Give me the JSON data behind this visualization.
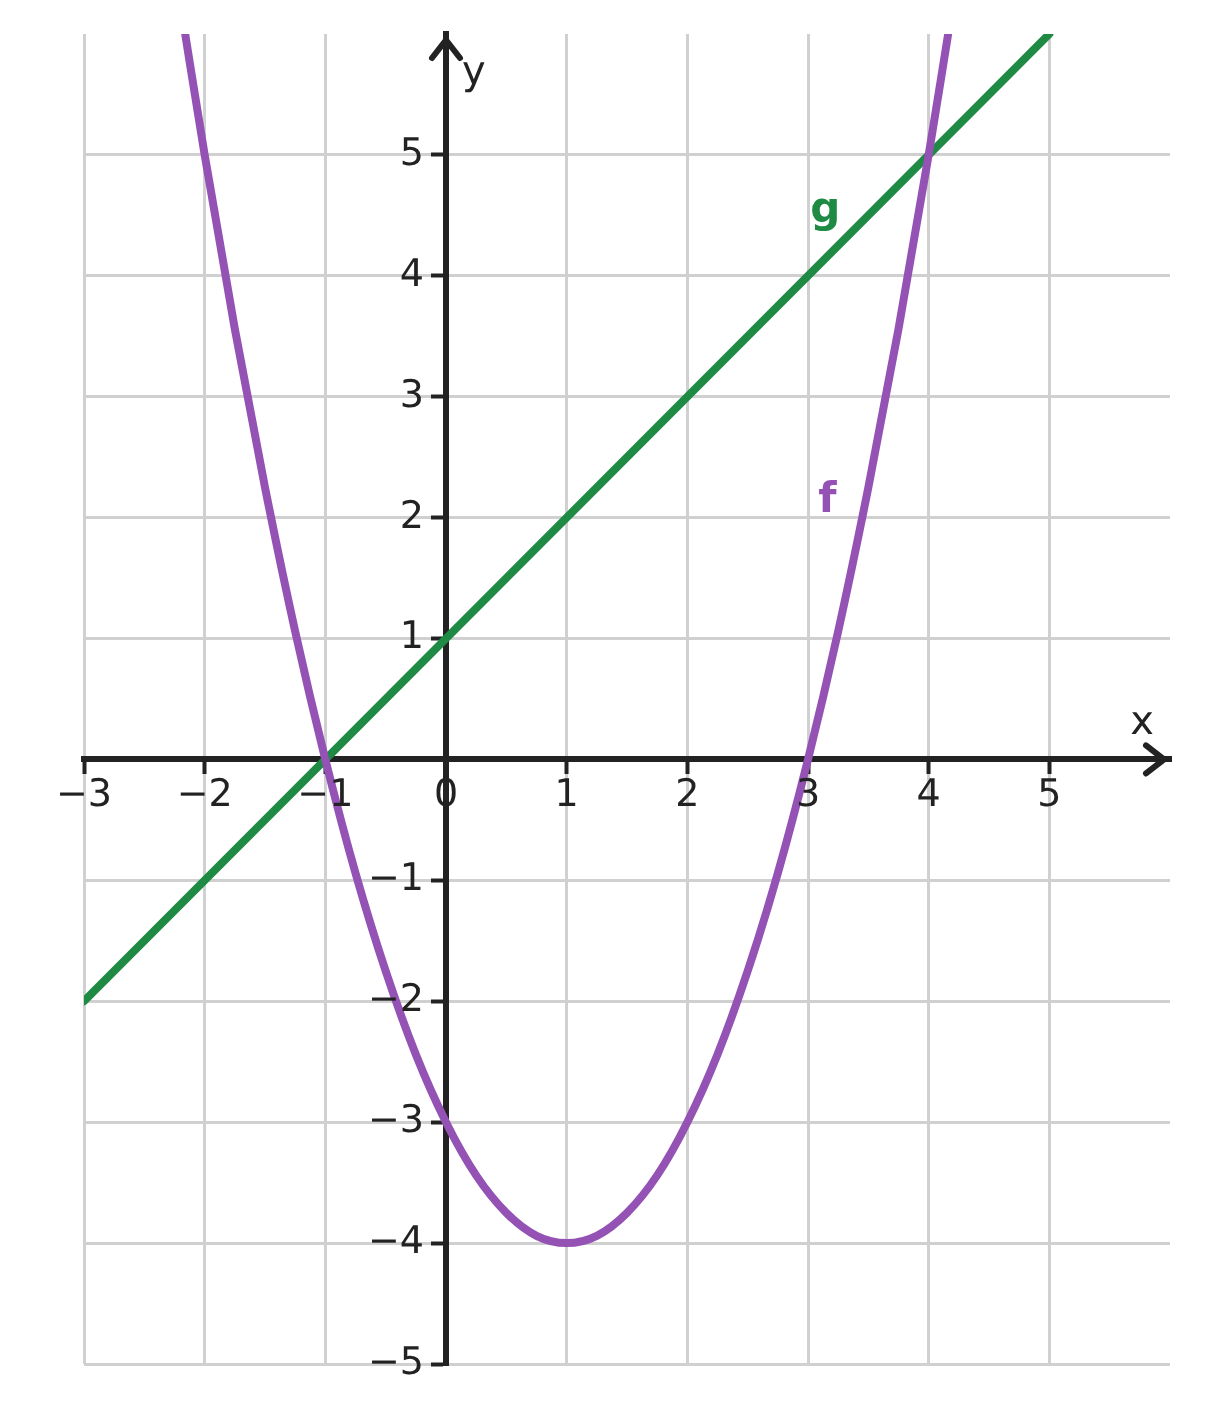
{
  "chart_data": {
    "type": "line",
    "xlabel": "x",
    "ylabel": "y",
    "xlim": [
      -3,
      6
    ],
    "ylim": [
      -5,
      6
    ],
    "xticks": [
      {
        "value": -3,
        "label": "−3"
      },
      {
        "value": -2,
        "label": "−2"
      },
      {
        "value": -1,
        "label": "−1"
      },
      0,
      1,
      2,
      3,
      4,
      5
    ],
    "yticks": [
      {
        "value": -5,
        "label": "−5"
      },
      {
        "value": -4,
        "label": "−4"
      },
      {
        "value": -3,
        "label": "−3"
      },
      {
        "value": -2,
        "label": "−2"
      },
      {
        "value": -1,
        "label": "−1"
      },
      1,
      2,
      3,
      4,
      5
    ],
    "grid": true,
    "legend": false,
    "marker": "none",
    "line_style": "solid",
    "series": [
      {
        "name": "f",
        "color": "#9452b5",
        "x": [
          -2.16,
          -2,
          -1.75,
          -1.5,
          -1.25,
          -1,
          -0.75,
          -0.5,
          -0.25,
          0,
          0.25,
          0.5,
          0.75,
          1,
          1.25,
          1.5,
          1.75,
          2,
          2.25,
          2.5,
          2.75,
          3,
          3.25,
          3.5,
          3.75,
          4,
          4.16
        ],
        "values": [
          5.99,
          5,
          3.56,
          2.25,
          1.06,
          0,
          -0.94,
          -1.75,
          -2.44,
          -3,
          -3.44,
          -3.75,
          -3.94,
          -4,
          -3.94,
          -3.75,
          -3.44,
          -3,
          -2.44,
          -1.75,
          -0.94,
          0,
          1.06,
          2.25,
          3.56,
          5,
          5.99
        ]
      },
      {
        "name": "g",
        "color": "#1e8a44",
        "x": [
          -3,
          5
        ],
        "values": [
          -2,
          6
        ]
      }
    ]
  }
}
